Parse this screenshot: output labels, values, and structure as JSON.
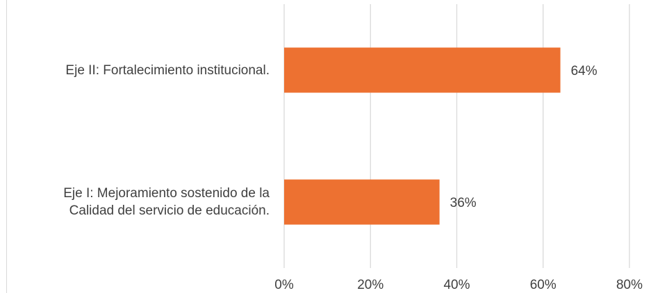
{
  "chart_data": {
    "type": "bar",
    "orientation": "horizontal",
    "categories": [
      "Eje II: Fortalecimiento institucional.",
      "Eje I: Mejoramiento sostenido de la\nCalidad del servicio de educación."
    ],
    "values": [
      64,
      36
    ],
    "data_labels": [
      "64%",
      "36%"
    ],
    "xlim": [
      0,
      80
    ],
    "xticks": [
      0,
      20,
      40,
      60,
      80
    ],
    "xtick_labels": [
      "0%",
      "20%",
      "40%",
      "60%",
      "80%"
    ],
    "title": "",
    "xlabel": "",
    "ylabel": "",
    "grid": true,
    "legend": "none",
    "bar_color": "#ED7131",
    "grid_color": "#D9D9D9",
    "text_color": "#404040"
  }
}
